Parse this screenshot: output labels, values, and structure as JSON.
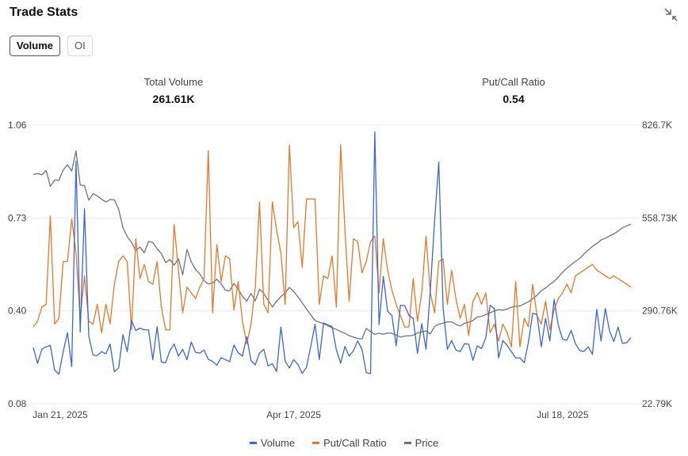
{
  "header": {
    "title": "Trade Stats",
    "collapse_icon": "collapse-arrows-icon"
  },
  "tabs": [
    {
      "label": "Volume",
      "active": true
    },
    {
      "label": "OI",
      "active": false
    }
  ],
  "stats": [
    {
      "label": "Total Volume",
      "value": "261.61K"
    },
    {
      "label": "Put/Call Ratio",
      "value": "0.54"
    }
  ],
  "colors": {
    "volume": "#3a66d8",
    "putcall": "#e8782a",
    "price": "#6e7386",
    "grid": "#ececec"
  },
  "chart_data": {
    "type": "line",
    "title": "",
    "x_labels": [
      "Jan 21, 2025",
      "Apr 17, 2025",
      "Jul 18, 2025"
    ],
    "x_label_index": [
      0,
      61,
      124
    ],
    "left_axis": {
      "ticks": [
        "1.06",
        "0.73",
        "0.40",
        "0.08"
      ],
      "range": [
        0.08,
        1.06
      ]
    },
    "right_axis": {
      "ticks": [
        "826.7K",
        "558.73K",
        "290.76K",
        "22.79K"
      ],
      "range": [
        22790,
        826700
      ]
    },
    "grid": true,
    "legend": [
      "Volume",
      "Put/Call Ratio",
      "Price"
    ],
    "legend_position": "bottom-center",
    "series": [
      {
        "name": "Volume",
        "axis": "right",
        "color": "#3a66d8",
        "values": [
          185000,
          139000,
          180000,
          187000,
          191000,
          120000,
          108000,
          172000,
          228000,
          130000,
          722000,
          230000,
          585000,
          219000,
          163000,
          162000,
          173000,
          167000,
          195000,
          115000,
          126000,
          222000,
          173000,
          263000,
          234000,
          241000,
          236000,
          236000,
          150000,
          245000,
          143000,
          141000,
          176000,
          195000,
          160000,
          180000,
          150000,
          201000,
          171000,
          169000,
          178000,
          151000,
          145000,
          134000,
          156000,
          150000,
          144000,
          192000,
          170000,
          160000,
          216000,
          147000,
          135000,
          169000,
          180000,
          132000,
          138000,
          116000,
          244000,
          146000,
          126000,
          150000,
          136000,
          110000,
          128000,
          189000,
          252000,
          150000,
          256000,
          250000,
          245000,
          178000,
          140000,
          188000,
          160000,
          176000,
          204000,
          180000,
          112000,
          110000,
          807000,
          251000,
          390000,
          290000,
          278000,
          190000,
          307000,
          306000,
          278000,
          269000,
          168000,
          254000,
          180000,
          350000,
          551000,
          720000,
          300000,
          180000,
          205000,
          178000,
          173000,
          196000,
          195000,
          148000,
          190000,
          182000,
          213000,
          307000,
          297000,
          155000,
          205000,
          191000,
          173000,
          155000,
          155000,
          141000,
          201000,
          284000,
          280000,
          187000,
          269000,
          204000,
          324000,
          249000,
          209000,
          206000,
          234000,
          196000,
          176000,
          174000,
          187000,
          165000,
          295000,
          204000,
          297000,
          232000,
          202000,
          244000,
          197000,
          199000,
          213000
        ]
      },
      {
        "name": "Put/Call Ratio",
        "axis": "left",
        "color": "#e8782a",
        "values": [
          0.35,
          0.37,
          0.42,
          0.43,
          0.74,
          0.36,
          0.38,
          0.58,
          0.58,
          0.73,
          0.61,
          0.38,
          0.53,
          0.37,
          0.36,
          0.43,
          0.33,
          0.43,
          0.36,
          0.5,
          0.58,
          0.6,
          0.58,
          0.34,
          0.66,
          0.52,
          0.57,
          0.51,
          0.5,
          0.58,
          0.42,
          0.34,
          0.34,
          0.71,
          0.55,
          0.4,
          0.49,
          0.47,
          0.45,
          0.49,
          0.52,
          0.97,
          0.4,
          0.64,
          0.51,
          0.6,
          0.59,
          0.41,
          0.51,
          0.37,
          0.29,
          0.36,
          0.49,
          0.79,
          0.43,
          0.4,
          0.79,
          0.69,
          0.61,
          0.43,
          0.99,
          0.7,
          0.72,
          0.56,
          0.8,
          0.8,
          0.8,
          0.43,
          0.53,
          0.52,
          0.6,
          0.42,
          0.99,
          0.69,
          0.44,
          0.66,
          0.65,
          0.54,
          0.58,
          0.65,
          0.67,
          0.47,
          0.66,
          0.55,
          0.48,
          0.43,
          0.39,
          0.35,
          0.35,
          0.52,
          0.37,
          0.47,
          0.67,
          0.47,
          0.4,
          0.58,
          0.59,
          0.43,
          0.55,
          0.45,
          0.38,
          0.43,
          0.32,
          0.44,
          0.47,
          0.43,
          0.47,
          0.33,
          0.36,
          0.3,
          0.36,
          0.33,
          0.28,
          0.51,
          0.28,
          0.38,
          0.35,
          0.5,
          0.39,
          0.36,
          0.44,
          0.34,
          0.41,
          0.45,
          0.47,
          0.5,
          0.47,
          0.53,
          0.54,
          0.55,
          0.56,
          0.57,
          0.55,
          0.54,
          0.53,
          0.52,
          0.53,
          0.52,
          0.51,
          0.5,
          0.49
        ]
      },
      {
        "name": "Price",
        "axis": "right",
        "color": "#6e7386",
        "values": [
          684000,
          687000,
          683000,
          696000,
          650000,
          668000,
          667000,
          697000,
          712000,
          694000,
          752000,
          654000,
          652000,
          610000,
          629000,
          622000,
          613000,
          605000,
          612000,
          611000,
          584000,
          531000,
          505000,
          488000,
          465000,
          475000,
          458000,
          491000,
          488000,
          470000,
          456000,
          430000,
          439000,
          423000,
          441000,
          395000,
          468000,
          432000,
          410000,
          398000,
          378000,
          368000,
          371000,
          382000,
          369000,
          350000,
          349000,
          370000,
          354000,
          332000,
          319000,
          341000,
          320000,
          353000,
          341000,
          321000,
          302000,
          318000,
          332000,
          343000,
          358000,
          347000,
          331000,
          314000,
          296000,
          279000,
          263000,
          258000,
          254000,
          248000,
          242000,
          237000,
          231000,
          226000,
          219000,
          215000,
          211000,
          210000,
          240000,
          231000,
          223000,
          226000,
          223000,
          227000,
          226000,
          221000,
          215000,
          218000,
          219000,
          220000,
          227000,
          230000,
          233000,
          224000,
          246000,
          252000,
          255000,
          259000,
          259000,
          252000,
          247000,
          255000,
          258000,
          263000,
          273000,
          275000,
          280000,
          285000,
          291000,
          294000,
          293000,
          296000,
          301000,
          304000,
          305000,
          311000,
          317000,
          326000,
          336000,
          349000,
          357000,
          367000,
          376000,
          388000,
          402000,
          414000,
          424000,
          433000,
          442000,
          455000,
          466000,
          477000,
          485000,
          495000,
          500000,
          507000,
          513000,
          521000,
          530000,
          536000,
          541000
        ]
      }
    ]
  }
}
